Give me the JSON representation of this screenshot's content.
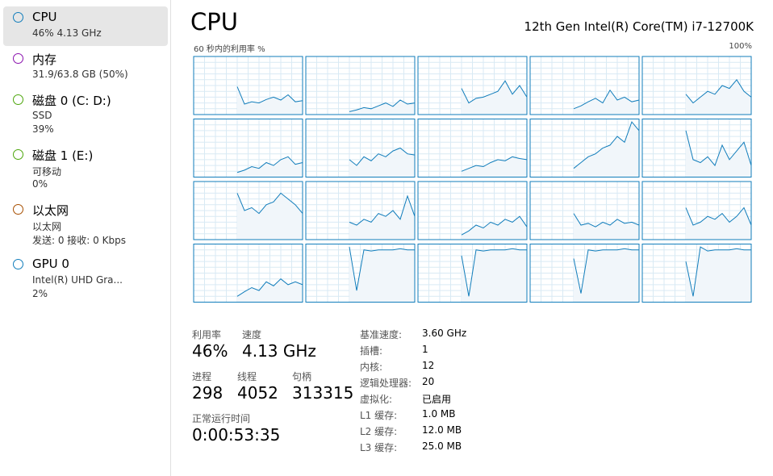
{
  "sidebar": {
    "items": [
      {
        "name": "CPU",
        "details": [
          "46% 4.13 GHz"
        ],
        "color": "#117dbb"
      },
      {
        "name": "内存",
        "details": [
          "31.9/63.8 GB (50%)"
        ],
        "color": "#8b12ae"
      },
      {
        "name": "磁盘 0 (C: D:)",
        "details": [
          "SSD",
          "39%"
        ],
        "color": "#4da60c"
      },
      {
        "name": "磁盘 1 (E:)",
        "details": [
          "可移动",
          "0%"
        ],
        "color": "#4da60c"
      },
      {
        "name": "以太网",
        "details": [
          "以太网",
          "发送: 0 接收: 0 Kbps"
        ],
        "color": "#a74f01"
      },
      {
        "name": "GPU 0",
        "details": [
          "Intel(R) UHD Gra...",
          "2%"
        ],
        "color": "#117dbb"
      }
    ]
  },
  "header": {
    "title": "CPU",
    "model": "12th Gen Intel(R) Core(TM) i7-12700K"
  },
  "graph": {
    "axis_label": "60 秒内的利用率 %",
    "max_label": "100%",
    "ylim": [
      0,
      100
    ],
    "color": "#117dbb",
    "fill": "#f1f6fa",
    "cores": [
      [
        null,
        null,
        null,
        null,
        null,
        null,
        48,
        18,
        22,
        20,
        26,
        30,
        25,
        34,
        22,
        24
      ],
      [
        null,
        null,
        null,
        null,
        null,
        null,
        5,
        8,
        12,
        10,
        15,
        20,
        14,
        25,
        18,
        20
      ],
      [
        null,
        null,
        null,
        null,
        null,
        null,
        45,
        20,
        28,
        30,
        35,
        40,
        58,
        35,
        50,
        30
      ],
      [
        null,
        null,
        null,
        null,
        null,
        null,
        10,
        15,
        22,
        28,
        20,
        42,
        25,
        30,
        22,
        25
      ],
      [
        null,
        null,
        null,
        null,
        null,
        null,
        35,
        20,
        30,
        40,
        35,
        50,
        45,
        60,
        40,
        30
      ],
      [
        null,
        null,
        null,
        null,
        null,
        null,
        8,
        12,
        18,
        15,
        25,
        20,
        30,
        35,
        22,
        25
      ],
      [
        null,
        null,
        null,
        null,
        null,
        null,
        30,
        20,
        35,
        28,
        40,
        35,
        45,
        50,
        40,
        38
      ],
      [
        null,
        null,
        null,
        null,
        null,
        null,
        10,
        15,
        20,
        18,
        25,
        30,
        28,
        35,
        32,
        30
      ],
      [
        null,
        null,
        null,
        null,
        null,
        null,
        15,
        25,
        35,
        40,
        50,
        55,
        70,
        60,
        95,
        80
      ],
      [
        null,
        null,
        null,
        null,
        null,
        null,
        80,
        30,
        25,
        35,
        20,
        55,
        30,
        45,
        60,
        20
      ],
      [
        null,
        null,
        null,
        null,
        null,
        null,
        80,
        50,
        55,
        45,
        60,
        65,
        80,
        70,
        60,
        45
      ],
      [
        null,
        null,
        null,
        null,
        null,
        null,
        30,
        25,
        35,
        30,
        45,
        40,
        50,
        35,
        75,
        40
      ],
      [
        null,
        null,
        null,
        null,
        null,
        null,
        8,
        15,
        25,
        20,
        30,
        25,
        35,
        30,
        40,
        22
      ],
      [
        null,
        null,
        null,
        null,
        null,
        null,
        45,
        25,
        28,
        22,
        30,
        25,
        35,
        28,
        30,
        25
      ],
      [
        null,
        null,
        null,
        null,
        null,
        null,
        55,
        25,
        30,
        40,
        35,
        45,
        30,
        40,
        55,
        25
      ],
      [
        null,
        null,
        null,
        null,
        null,
        null,
        10,
        18,
        25,
        20,
        35,
        28,
        40,
        30,
        35,
        30
      ],
      [
        null,
        null,
        null,
        null,
        null,
        null,
        95,
        20,
        90,
        88,
        90,
        90,
        90,
        92,
        90,
        90
      ],
      [
        null,
        null,
        null,
        null,
        null,
        null,
        80,
        10,
        90,
        88,
        90,
        90,
        90,
        92,
        90,
        90
      ],
      [
        null,
        null,
        null,
        null,
        null,
        null,
        75,
        15,
        90,
        88,
        90,
        90,
        90,
        92,
        90,
        90
      ],
      [
        null,
        null,
        null,
        null,
        null,
        null,
        70,
        10,
        95,
        88,
        90,
        90,
        90,
        92,
        90,
        90
      ]
    ]
  },
  "stats": {
    "utilization": {
      "label": "利用率",
      "value": "46%"
    },
    "speed": {
      "label": "速度",
      "value": "4.13 GHz"
    },
    "processes": {
      "label": "进程",
      "value": "298"
    },
    "threads": {
      "label": "线程",
      "value": "4052"
    },
    "handles": {
      "label": "句柄",
      "value": "313315"
    },
    "uptime": {
      "label": "正常运行时间",
      "value": "0:00:53:35"
    }
  },
  "details": [
    [
      "基准速度:",
      "3.60 GHz"
    ],
    [
      "插槽:",
      "1"
    ],
    [
      "内核:",
      "12"
    ],
    [
      "逻辑处理器:",
      "20"
    ],
    [
      "虚拟化:",
      "已启用"
    ],
    [
      "L1 缓存:",
      "1.0 MB"
    ],
    [
      "L2 缓存:",
      "12.0 MB"
    ],
    [
      "L3 缓存:",
      "25.0 MB"
    ]
  ]
}
